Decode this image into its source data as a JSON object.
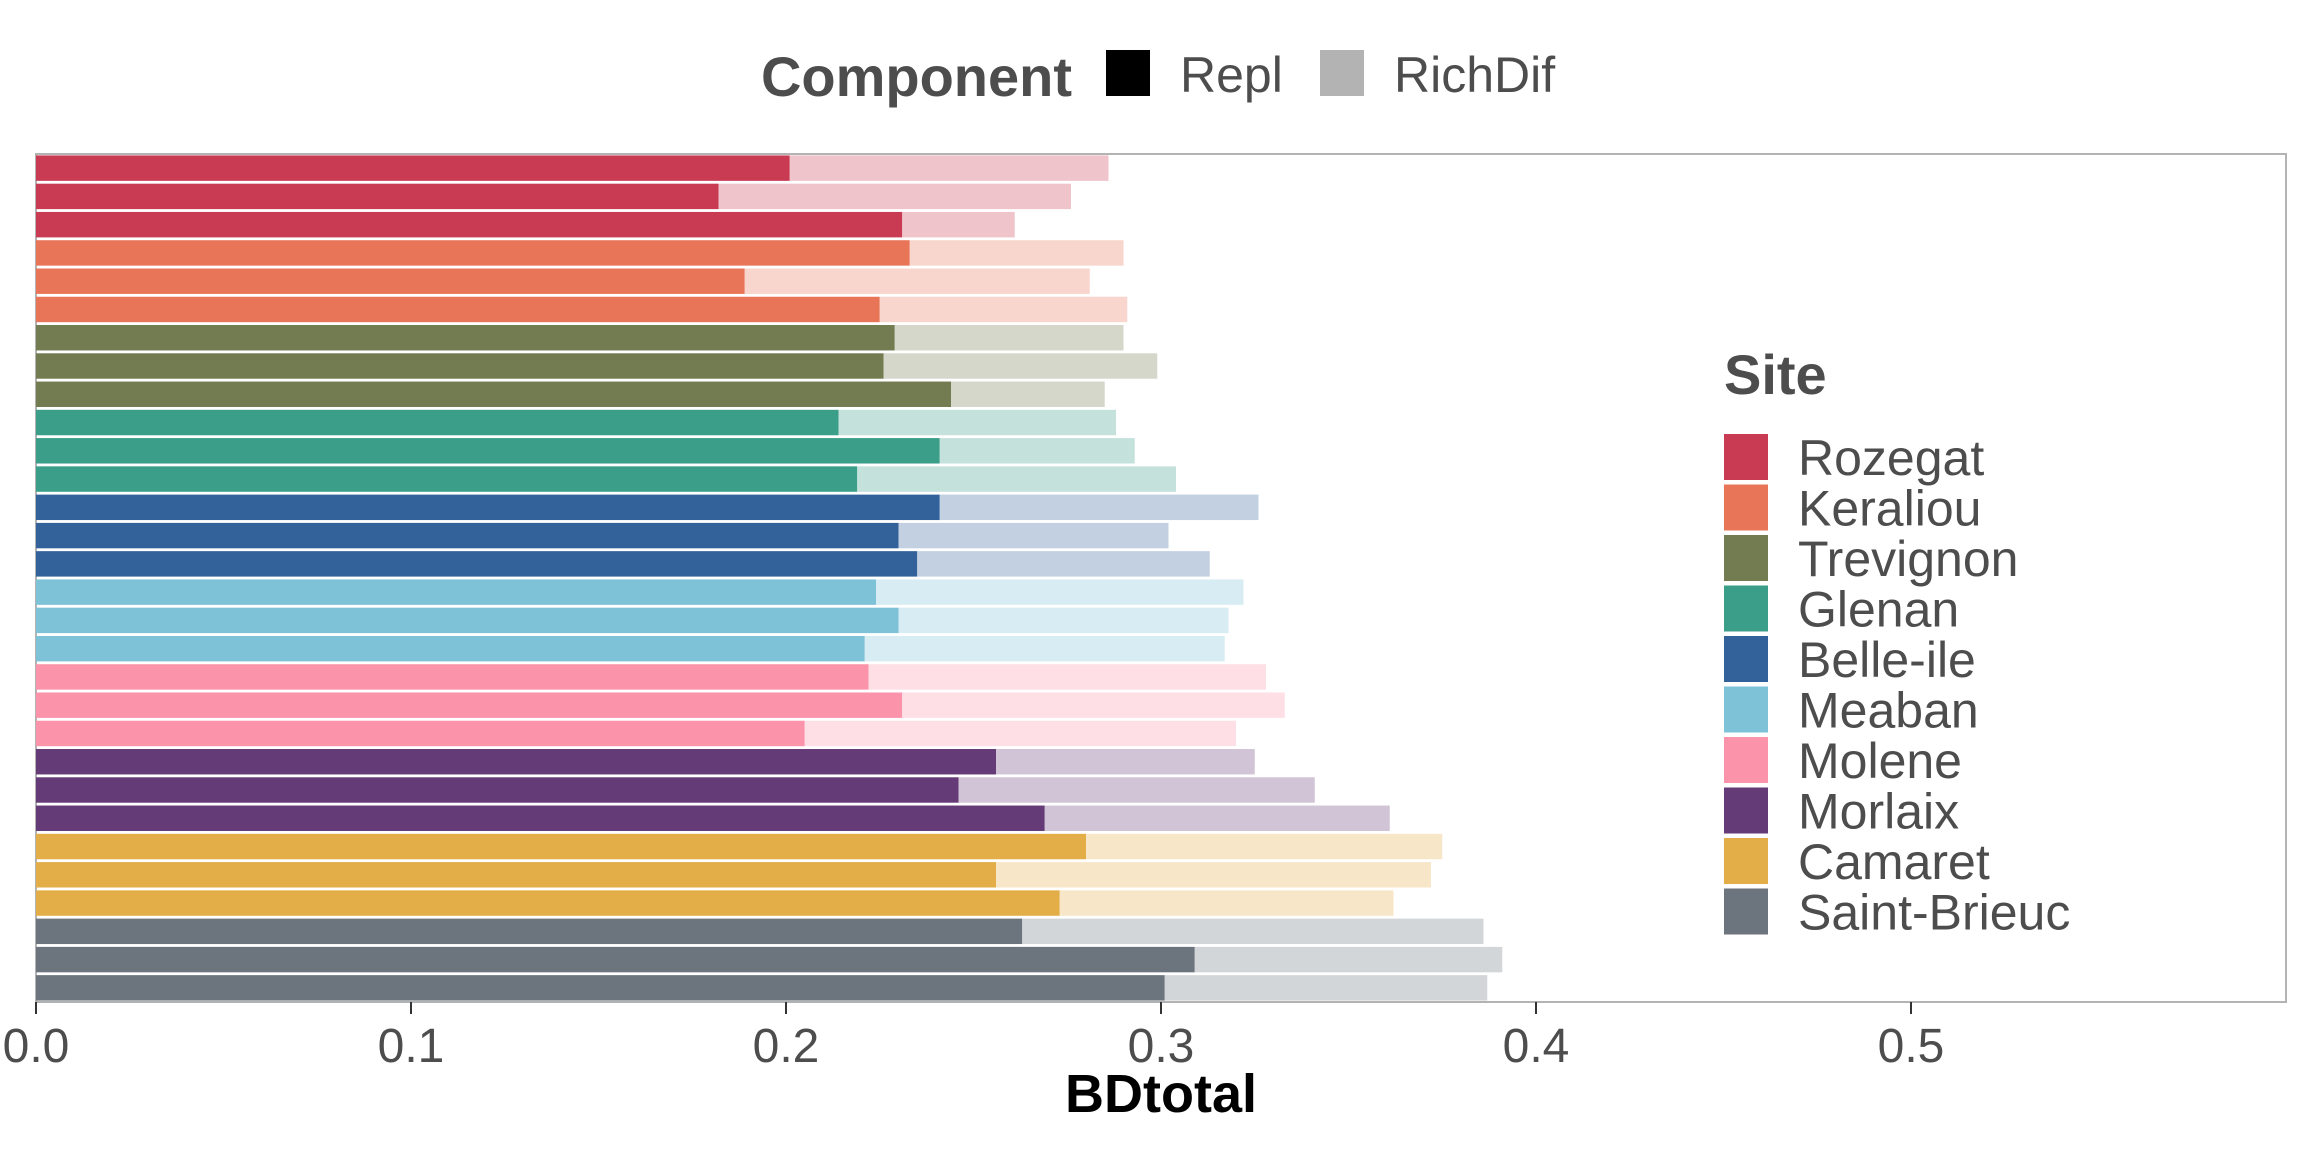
{
  "chart_data": {
    "type": "bar",
    "orientation": "horizontal",
    "stacked": true,
    "xlabel": "BDtotal",
    "ylabel": "",
    "xlim": [
      0,
      0.6
    ],
    "x_ticks": [
      "0.0",
      "0.1",
      "0.2",
      "0.3",
      "0.4",
      "0.5"
    ],
    "grid": false,
    "components": {
      "title": "Component",
      "position": "top",
      "items": [
        {
          "name": "Repl",
          "color": "#000000"
        },
        {
          "name": "RichDif",
          "color": "#b3b3b3"
        }
      ]
    },
    "sites": {
      "title": "Site",
      "position": "right",
      "items": [
        {
          "name": "Rozegat",
          "color": "#c93a53"
        },
        {
          "name": "Keraliou",
          "color": "#e97558"
        },
        {
          "name": "Trevignon",
          "color": "#737b51"
        },
        {
          "name": "Glenan",
          "color": "#3a9e88"
        },
        {
          "name": "Belle-ile",
          "color": "#33629b"
        },
        {
          "name": "Meaban",
          "color": "#7ec2d8"
        },
        {
          "name": "Molene",
          "color": "#fb93aa"
        },
        {
          "name": "Morlaix",
          "color": "#653b77"
        },
        {
          "name": "Camaret",
          "color": "#e3ae48"
        },
        {
          "name": "Saint-Brieuc",
          "color": "#6c757d"
        }
      ]
    },
    "bars": [
      {
        "site": "Rozegat",
        "repl": 0.201,
        "richdif": 0.085
      },
      {
        "site": "Rozegat",
        "repl": 0.182,
        "richdif": 0.094
      },
      {
        "site": "Rozegat",
        "repl": 0.231,
        "richdif": 0.03
      },
      {
        "site": "Keraliou",
        "repl": 0.233,
        "richdif": 0.057
      },
      {
        "site": "Keraliou",
        "repl": 0.189,
        "richdif": 0.092
      },
      {
        "site": "Keraliou",
        "repl": 0.225,
        "richdif": 0.066
      },
      {
        "site": "Trevignon",
        "repl": 0.229,
        "richdif": 0.061
      },
      {
        "site": "Trevignon",
        "repl": 0.226,
        "richdif": 0.073
      },
      {
        "site": "Trevignon",
        "repl": 0.244,
        "richdif": 0.041
      },
      {
        "site": "Glenan",
        "repl": 0.214,
        "richdif": 0.074
      },
      {
        "site": "Glenan",
        "repl": 0.241,
        "richdif": 0.052
      },
      {
        "site": "Glenan",
        "repl": 0.219,
        "richdif": 0.085
      },
      {
        "site": "Belle-ile",
        "repl": 0.241,
        "richdif": 0.085
      },
      {
        "site": "Belle-ile",
        "repl": 0.23,
        "richdif": 0.072
      },
      {
        "site": "Belle-ile",
        "repl": 0.235,
        "richdif": 0.078
      },
      {
        "site": "Meaban",
        "repl": 0.224,
        "richdif": 0.098
      },
      {
        "site": "Meaban",
        "repl": 0.23,
        "richdif": 0.088
      },
      {
        "site": "Meaban",
        "repl": 0.221,
        "richdif": 0.096
      },
      {
        "site": "Molene",
        "repl": 0.222,
        "richdif": 0.106
      },
      {
        "site": "Molene",
        "repl": 0.231,
        "richdif": 0.102
      },
      {
        "site": "Molene",
        "repl": 0.205,
        "richdif": 0.115
      },
      {
        "site": "Morlaix",
        "repl": 0.256,
        "richdif": 0.069
      },
      {
        "site": "Morlaix",
        "repl": 0.246,
        "richdif": 0.095
      },
      {
        "site": "Morlaix",
        "repl": 0.269,
        "richdif": 0.092
      },
      {
        "site": "Camaret",
        "repl": 0.28,
        "richdif": 0.095
      },
      {
        "site": "Camaret",
        "repl": 0.256,
        "richdif": 0.116
      },
      {
        "site": "Camaret",
        "repl": 0.273,
        "richdif": 0.089
      },
      {
        "site": "Saint-Brieuc",
        "repl": 0.263,
        "richdif": 0.123
      },
      {
        "site": "Saint-Brieuc",
        "repl": 0.309,
        "richdif": 0.082
      },
      {
        "site": "Saint-Brieuc",
        "repl": 0.301,
        "richdif": 0.086
      }
    ]
  }
}
